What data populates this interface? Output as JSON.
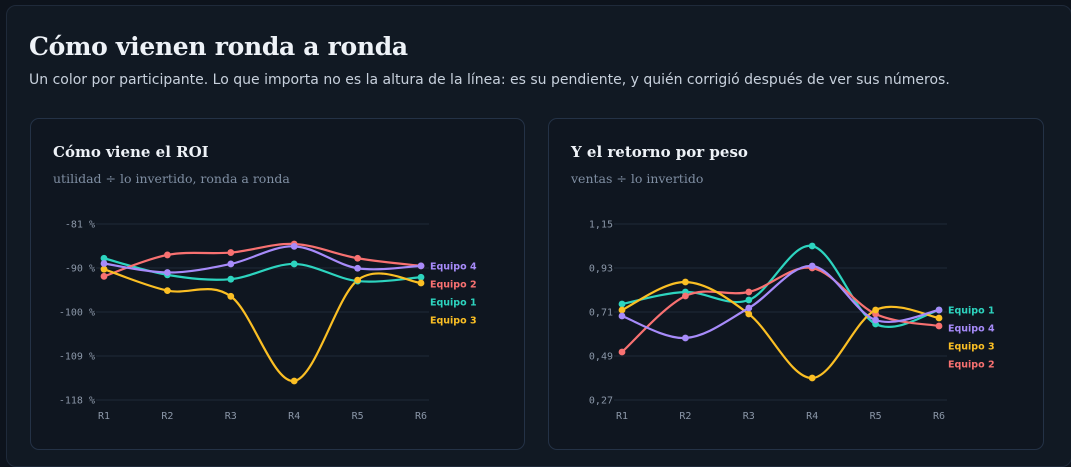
{
  "header": {
    "title": "Cómo vienen ronda a ronda",
    "subtitle": "Un color por participante. Lo que importa no es la altura de la línea: es su pendiente, y quién corrigió después de ver sus números."
  },
  "chart_data": [
    {
      "type": "line",
      "title": "Cómo viene el ROI",
      "subtitle": "utilidad ÷ lo invertido, ronda a ronda",
      "categories": [
        "R1",
        "R2",
        "R3",
        "R4",
        "R5",
        "R6"
      ],
      "yticks": [
        "-81 %",
        "-90 %",
        "-100 %",
        "-109 %",
        "-118 %"
      ],
      "ylim": [
        -118,
        -81
      ],
      "series": [
        {
          "name": "Equipo 1",
          "color": "#2dd4bf",
          "values": [
            -88.2,
            -91.7,
            -92.6,
            -89.4,
            -93.0,
            -92.2
          ]
        },
        {
          "name": "Equipo 2",
          "color": "#f87171",
          "values": [
            -92.0,
            -87.5,
            -87.0,
            -85.2,
            -88.2,
            -89.8
          ]
        },
        {
          "name": "Equipo 3",
          "color": "#fbbf24",
          "values": [
            -90.5,
            -95.0,
            -96.2,
            -114.0,
            -92.8,
            -93.4
          ]
        },
        {
          "name": "Equipo 4",
          "color": "#a78bfa",
          "values": [
            -89.3,
            -91.2,
            -89.4,
            -85.7,
            -90.3,
            -89.8
          ]
        }
      ],
      "legend_order": [
        "Equipo 4",
        "Equipo 2",
        "Equipo 1",
        "Equipo 3"
      ]
    },
    {
      "type": "line",
      "title": "Y el retorno por peso",
      "subtitle": "ventas ÷ lo invertido",
      "categories": [
        "R1",
        "R2",
        "R3",
        "R4",
        "R5",
        "R6"
      ],
      "yticks": [
        "1,15",
        "0,93",
        "0,71",
        "0,49",
        "0,27"
      ],
      "ylim": [
        0.27,
        1.15
      ],
      "series": [
        {
          "name": "Equipo 1",
          "color": "#2dd4bf",
          "values": [
            0.75,
            0.81,
            0.77,
            1.04,
            0.65,
            0.72
          ]
        },
        {
          "name": "Equipo 2",
          "color": "#f87171",
          "values": [
            0.51,
            0.79,
            0.81,
            0.93,
            0.7,
            0.64
          ]
        },
        {
          "name": "Equipo 3",
          "color": "#fbbf24",
          "values": [
            0.72,
            0.86,
            0.7,
            0.38,
            0.72,
            0.68
          ]
        },
        {
          "name": "Equipo 4",
          "color": "#a78bfa",
          "values": [
            0.69,
            0.58,
            0.73,
            0.94,
            0.67,
            0.72
          ]
        }
      ],
      "legend_order": [
        "Equipo 1",
        "Equipo 4",
        "Equipo 3",
        "Equipo 2"
      ]
    }
  ]
}
